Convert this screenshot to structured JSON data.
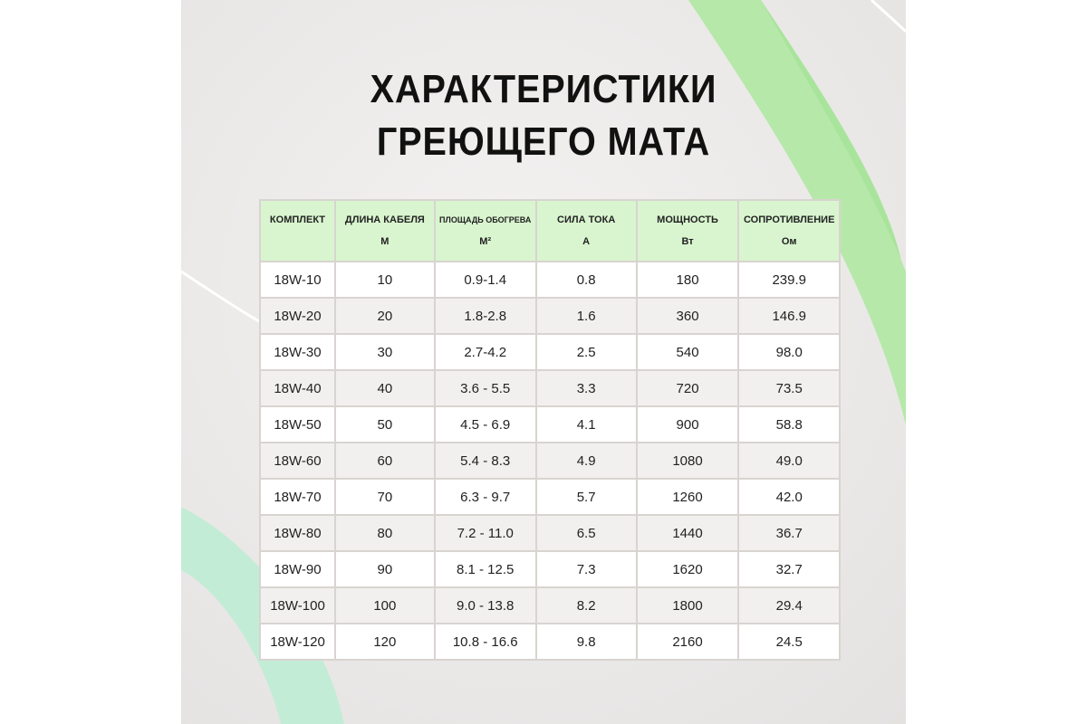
{
  "title": [
    "ХАРАКТЕРИСТИКИ",
    "ГРЕЮЩЕГО МАТА"
  ],
  "colors": {
    "header_bg": "#d9f5cf",
    "accent_green": "#a8e39a",
    "mint": "#c3ecd6"
  },
  "table": {
    "headers": [
      {
        "label": "КОМПЛЕКТ",
        "unit": ""
      },
      {
        "label": "ДЛИНА КАБЕЛЯ",
        "unit": "М"
      },
      {
        "label": "ПЛОЩАДЬ ОБОГРЕВА",
        "unit": "М²"
      },
      {
        "label": "СИЛА ТОКА",
        "unit": "А"
      },
      {
        "label": "МОЩНОСТЬ",
        "unit": "Вт"
      },
      {
        "label": "СОПРОТИВЛЕНИЕ",
        "unit": "Ом"
      }
    ],
    "rows": [
      [
        "18W-10",
        "10",
        "0.9-1.4",
        "0.8",
        "180",
        "239.9"
      ],
      [
        "18W-20",
        "20",
        "1.8-2.8",
        "1.6",
        "360",
        "146.9"
      ],
      [
        "18W-30",
        "30",
        "2.7-4.2",
        "2.5",
        "540",
        "98.0"
      ],
      [
        "18W-40",
        "40",
        "3.6 - 5.5",
        "3.3",
        "720",
        "73.5"
      ],
      [
        "18W-50",
        "50",
        "4.5 - 6.9",
        "4.1",
        "900",
        "58.8"
      ],
      [
        "18W-60",
        "60",
        "5.4 - 8.3",
        "4.9",
        "1080",
        "49.0"
      ],
      [
        "18W-70",
        "70",
        "6.3 - 9.7",
        "5.7",
        "1260",
        "42.0"
      ],
      [
        "18W-80",
        "80",
        "7.2 - 11.0",
        "6.5",
        "1440",
        "36.7"
      ],
      [
        "18W-90",
        "90",
        "8.1 - 12.5",
        "7.3",
        "1620",
        "32.7"
      ],
      [
        "18W-100",
        "100",
        "9.0 - 13.8",
        "8.2",
        "1800",
        "29.4"
      ],
      [
        "18W-120",
        "120",
        "10.8 - 16.6",
        "9.8",
        "2160",
        "24.5"
      ]
    ]
  }
}
